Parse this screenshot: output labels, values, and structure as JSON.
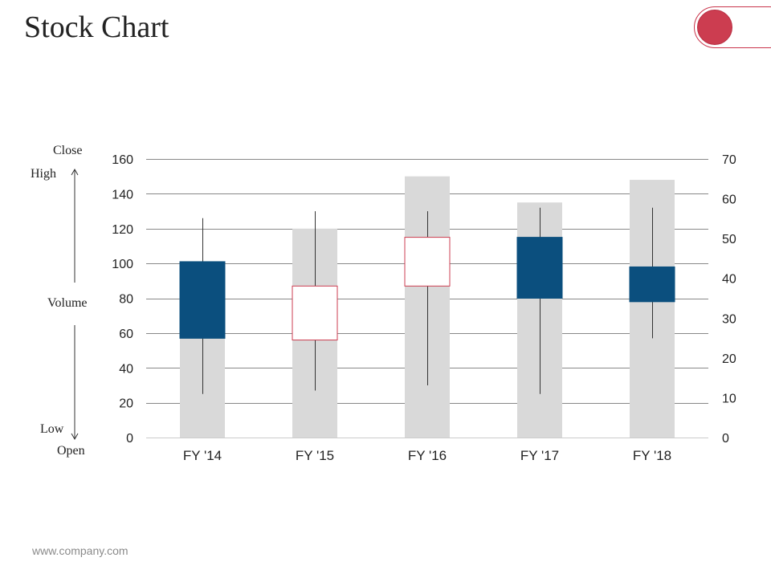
{
  "header": {
    "title": "Stock Chart"
  },
  "footer": {
    "website": "www.company.com"
  },
  "legend": {
    "close": "Close",
    "high": "High",
    "volume": "Volume",
    "low": "Low",
    "open": "Open"
  },
  "colors": {
    "accent": "#cc3d50",
    "down_candle": "#0b4f7e",
    "volume_bar": "#d9d9d9",
    "gridline": "#888888"
  },
  "chart_data": {
    "type": "stock-volume-open-high-low-close",
    "categories": [
      "FY '14",
      "FY '15",
      "FY '16",
      "FY '17",
      "FY '18"
    ],
    "volume": [
      100,
      120,
      150,
      135,
      148
    ],
    "open": [
      101,
      56,
      87,
      115,
      98
    ],
    "high": [
      126,
      130,
      130,
      132,
      132
    ],
    "low": [
      25,
      27,
      30,
      25,
      57
    ],
    "close": [
      57,
      87,
      115,
      80,
      78
    ],
    "left_axis": {
      "min": 0,
      "max": 160,
      "step": 20,
      "ticks": [
        "0",
        "20",
        "40",
        "60",
        "80",
        "100",
        "120",
        "140",
        "160"
      ]
    },
    "right_axis": {
      "min": 0,
      "max": 70,
      "step": 10,
      "ticks": [
        "0",
        "10",
        "20",
        "30",
        "40",
        "50",
        "60",
        "70"
      ]
    },
    "grid": true
  }
}
